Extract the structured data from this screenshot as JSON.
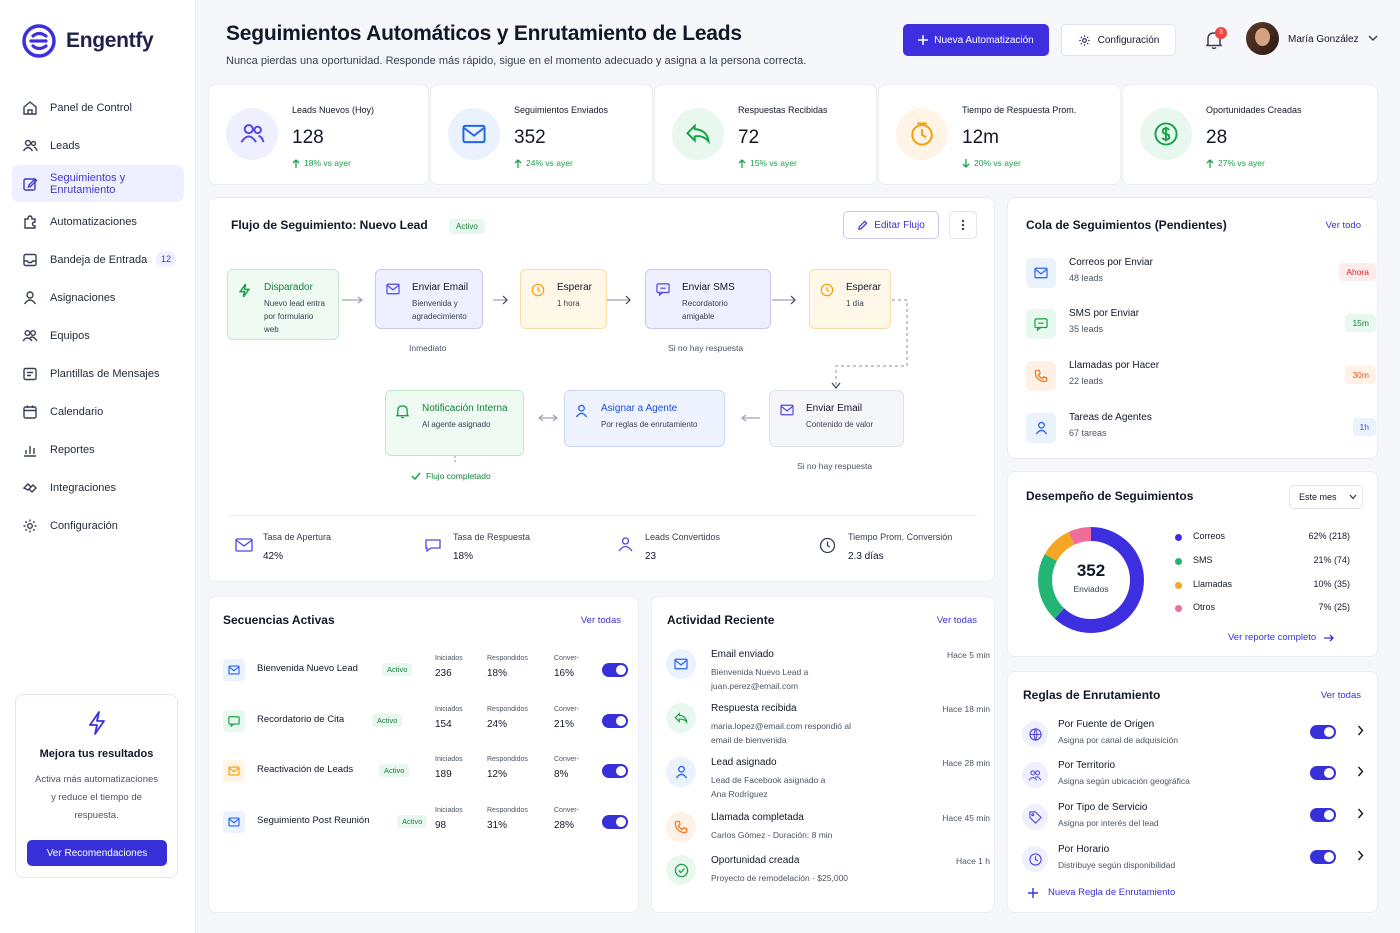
{
  "brand": {
    "name": "Engentfy",
    "color": "#3d2fe0"
  },
  "sidebar": {
    "items": [
      {
        "label": "Panel de Control",
        "icon": "home-icon"
      },
      {
        "label": "Leads",
        "icon": "users-icon"
      },
      {
        "label": "Seguimientos y Enrutamiento",
        "icon": "edit-icon",
        "active": true
      },
      {
        "label": "Automatizaciones",
        "icon": "puzzle-icon"
      },
      {
        "label": "Bandeja de Entrada",
        "icon": "inbox-icon",
        "count": "12"
      },
      {
        "label": "Asignaciones",
        "icon": "user-icon"
      },
      {
        "label": "Equipos",
        "icon": "team-icon"
      },
      {
        "label": "Plantillas de Mensajes",
        "icon": "message-icon"
      },
      {
        "label": "Calendario",
        "icon": "calendar-icon"
      },
      {
        "label": "Reportes",
        "icon": "bar-chart-icon"
      },
      {
        "label": "Integraciones",
        "icon": "plug-icon"
      },
      {
        "label": "Configuración",
        "icon": "gear-icon"
      }
    ],
    "promo": {
      "title": "Mejora tus resultados",
      "text": "Activa más automatizaciones y reduce el tiempo de respuesta.",
      "button": "Ver Recomendaciones"
    }
  },
  "header": {
    "title": "Seguimientos Automáticos y Enrutamiento de Leads",
    "subtitle": "Nunca pierdas una oportunidad. Responde más rápido, sigue en el momento adecuado y asigna a la persona correcta.",
    "new_button": "Nueva Automatización",
    "config_button": "Configuración",
    "notifications": "3",
    "user": "María González"
  },
  "kpis": [
    {
      "label": "Leads Nuevos (Hoy)",
      "value": "128",
      "delta": "18% vs ayer",
      "dir": "up",
      "color": "#4f46e5",
      "bg": "#eef0ff"
    },
    {
      "label": "Seguimientos Enviados",
      "value": "352",
      "delta": "24% vs ayer",
      "dir": "up",
      "color": "#2563eb",
      "bg": "#eaf2fe"
    },
    {
      "label": "Respuestas Recibidas",
      "value": "72",
      "delta": "15% vs ayer",
      "dir": "up",
      "color": "#16a34a",
      "bg": "#e9f8ef"
    },
    {
      "label": "Tiempo de Respuesta Prom.",
      "value": "12m",
      "delta": "20% vs ayer",
      "dir": "down",
      "color": "#f59e0b",
      "bg": "#fff4e5"
    },
    {
      "label": "Oportunidades Creadas",
      "value": "28",
      "delta": "27% vs ayer",
      "dir": "up",
      "color": "#16a34a",
      "bg": "#e9f8ef"
    }
  ],
  "flow": {
    "title": "Flujo de Seguimiento: Nuevo Lead",
    "status": "Activo",
    "edit_button": "Editar Flujo",
    "nodes": {
      "trigger": {
        "title": "Disparador",
        "sub": "Nuevo lead entra por formulario web"
      },
      "email1": {
        "title": "Enviar Email",
        "sub": "Bienvenida y agradecimiento"
      },
      "wait1": {
        "title": "Esperar",
        "sub": "1 hora"
      },
      "sms": {
        "title": "Enviar SMS",
        "sub": "Recordatorio amigable"
      },
      "wait2": {
        "title": "Esperar",
        "sub": "1 día"
      },
      "email2": {
        "title": "Enviar Email",
        "sub": "Contenido de valor"
      },
      "assign": {
        "title": "Asignar a Agente",
        "sub": "Por reglas de enrutamiento"
      },
      "notify": {
        "title": "Notificación Interna",
        "sub": "Al agente asignado"
      }
    },
    "captions": {
      "immediate": "Inmediato",
      "no_reply_1": "Si no hay respuesta",
      "no_reply_2": "Si no hay respuesta",
      "completed": "Flujo completado"
    },
    "metrics": [
      {
        "label": "Tasa de Apertura",
        "value": "42%"
      },
      {
        "label": "Tasa de Respuesta",
        "value": "18%"
      },
      {
        "label": "Leads Convertidos",
        "value": "23"
      },
      {
        "label": "Tiempo Prom. Conversión",
        "value": "2.3 días"
      }
    ]
  },
  "queue": {
    "title": "Cola de Seguimientos (Pendientes)",
    "link": "Ver todo",
    "items": [
      {
        "title": "Correos por Enviar",
        "sub": "48 leads",
        "pill": "Ahora",
        "color": "#2563eb",
        "bg": "#eaf2fe",
        "pill_color": "#dc2626",
        "pill_bg": "#fdecec"
      },
      {
        "title": "SMS por Enviar",
        "sub": "35 leads",
        "pill": "15m",
        "color": "#16a34a",
        "bg": "#e9f8ef",
        "pill_color": "#15803d",
        "pill_bg": "#e9f8ef"
      },
      {
        "title": "Llamadas por Hacer",
        "sub": "22 leads",
        "pill": "30m",
        "color": "#f97316",
        "bg": "#fff1e6",
        "pill_color": "#ea580c",
        "pill_bg": "#fff1e6"
      },
      {
        "title": "Tareas de Agentes",
        "sub": "67 tareas",
        "pill": "1h",
        "color": "#2563eb",
        "bg": "#eaf2fe",
        "pill_color": "#2563eb",
        "pill_bg": "#eaf2fe"
      }
    ]
  },
  "performance": {
    "title": "Desempeño de Seguimientos",
    "period": "Este mes",
    "center_value": "352",
    "center_label": "Enviados",
    "link": "Ver reporte completo",
    "chart_data": {
      "type": "pie",
      "categories": [
        "Correos",
        "SMS",
        "Llamadas",
        "Otros"
      ],
      "values": [
        218,
        74,
        35,
        25
      ],
      "labels": [
        "62% (218)",
        "21% (74)",
        "10% (35)",
        "7% (25)"
      ],
      "colors": [
        "#3d2fe0",
        "#22b573",
        "#f5a623",
        "#f06c9b"
      ]
    }
  },
  "sequences": {
    "title": "Secuencias Activas",
    "link": "Ver todas",
    "col_started": "Iniciados",
    "col_replied": "Respondidos",
    "col_conv": "Conver-",
    "items": [
      {
        "name": "Bienvenida Nuevo Lead",
        "status": "Activo",
        "started": "236",
        "replied": "18%",
        "conv": "16%",
        "icon": "mail-icon",
        "color": "#2563eb",
        "bg": "#eaf2fe"
      },
      {
        "name": "Recordatorio de Cita",
        "status": "Activo",
        "started": "154",
        "replied": "24%",
        "conv": "21%",
        "icon": "chat-icon",
        "color": "#16a34a",
        "bg": "#e9f8ef"
      },
      {
        "name": "Reactivación de Leads",
        "status": "Activo",
        "started": "189",
        "replied": "12%",
        "conv": "8%",
        "icon": "mail-icon",
        "color": "#f59e0b",
        "bg": "#fff4e5"
      },
      {
        "name": "Seguimiento Post Reunión",
        "status": "Activo",
        "started": "98",
        "replied": "31%",
        "conv": "28%",
        "icon": "mail-icon",
        "color": "#2563eb",
        "bg": "#eaf2fe"
      }
    ]
  },
  "activity": {
    "title": "Actividad Reciente",
    "link": "Ver todas",
    "items": [
      {
        "title": "Email enviado",
        "sub": "Bienvenida Nuevo Lead a juan.perez@email.com",
        "time": "Hace 5 min",
        "color": "#2563eb",
        "bg": "#eaf2fe"
      },
      {
        "title": "Respuesta recibida",
        "sub": "maria.lopez@email.com respondió al email de bienvenida",
        "time": "Hace 18 min",
        "color": "#16a34a",
        "bg": "#e9f8ef"
      },
      {
        "title": "Lead asignado",
        "sub": "Lead de Facebook asignado a Ana Rodríguez",
        "time": "Hace 28 min",
        "color": "#2563eb",
        "bg": "#eaf2fe"
      },
      {
        "title": "Llamada completada",
        "sub": "Carlos Gómez - Duración: 8 min",
        "time": "Hace 45 min",
        "color": "#f97316",
        "bg": "#fff1e6"
      },
      {
        "title": "Oportunidad creada",
        "sub": "Proyecto de remodelación - $25,000",
        "time": "Hace 1 h",
        "color": "#16a34a",
        "bg": "#e9f8ef"
      }
    ]
  },
  "rules": {
    "title": "Reglas de Enrutamiento",
    "link": "Ver todas",
    "add": "Nueva Regla de Enrutamiento",
    "items": [
      {
        "title": "Por Fuente de Origen",
        "sub": "Asigna por canal de adquisición"
      },
      {
        "title": "Por Territorio",
        "sub": "Asigna según ubicación geográfica"
      },
      {
        "title": "Por Tipo de Servicio",
        "sub": "Asigna por interés del lead"
      },
      {
        "title": "Por Horario",
        "sub": "Distribuye según disponibilidad"
      }
    ]
  }
}
